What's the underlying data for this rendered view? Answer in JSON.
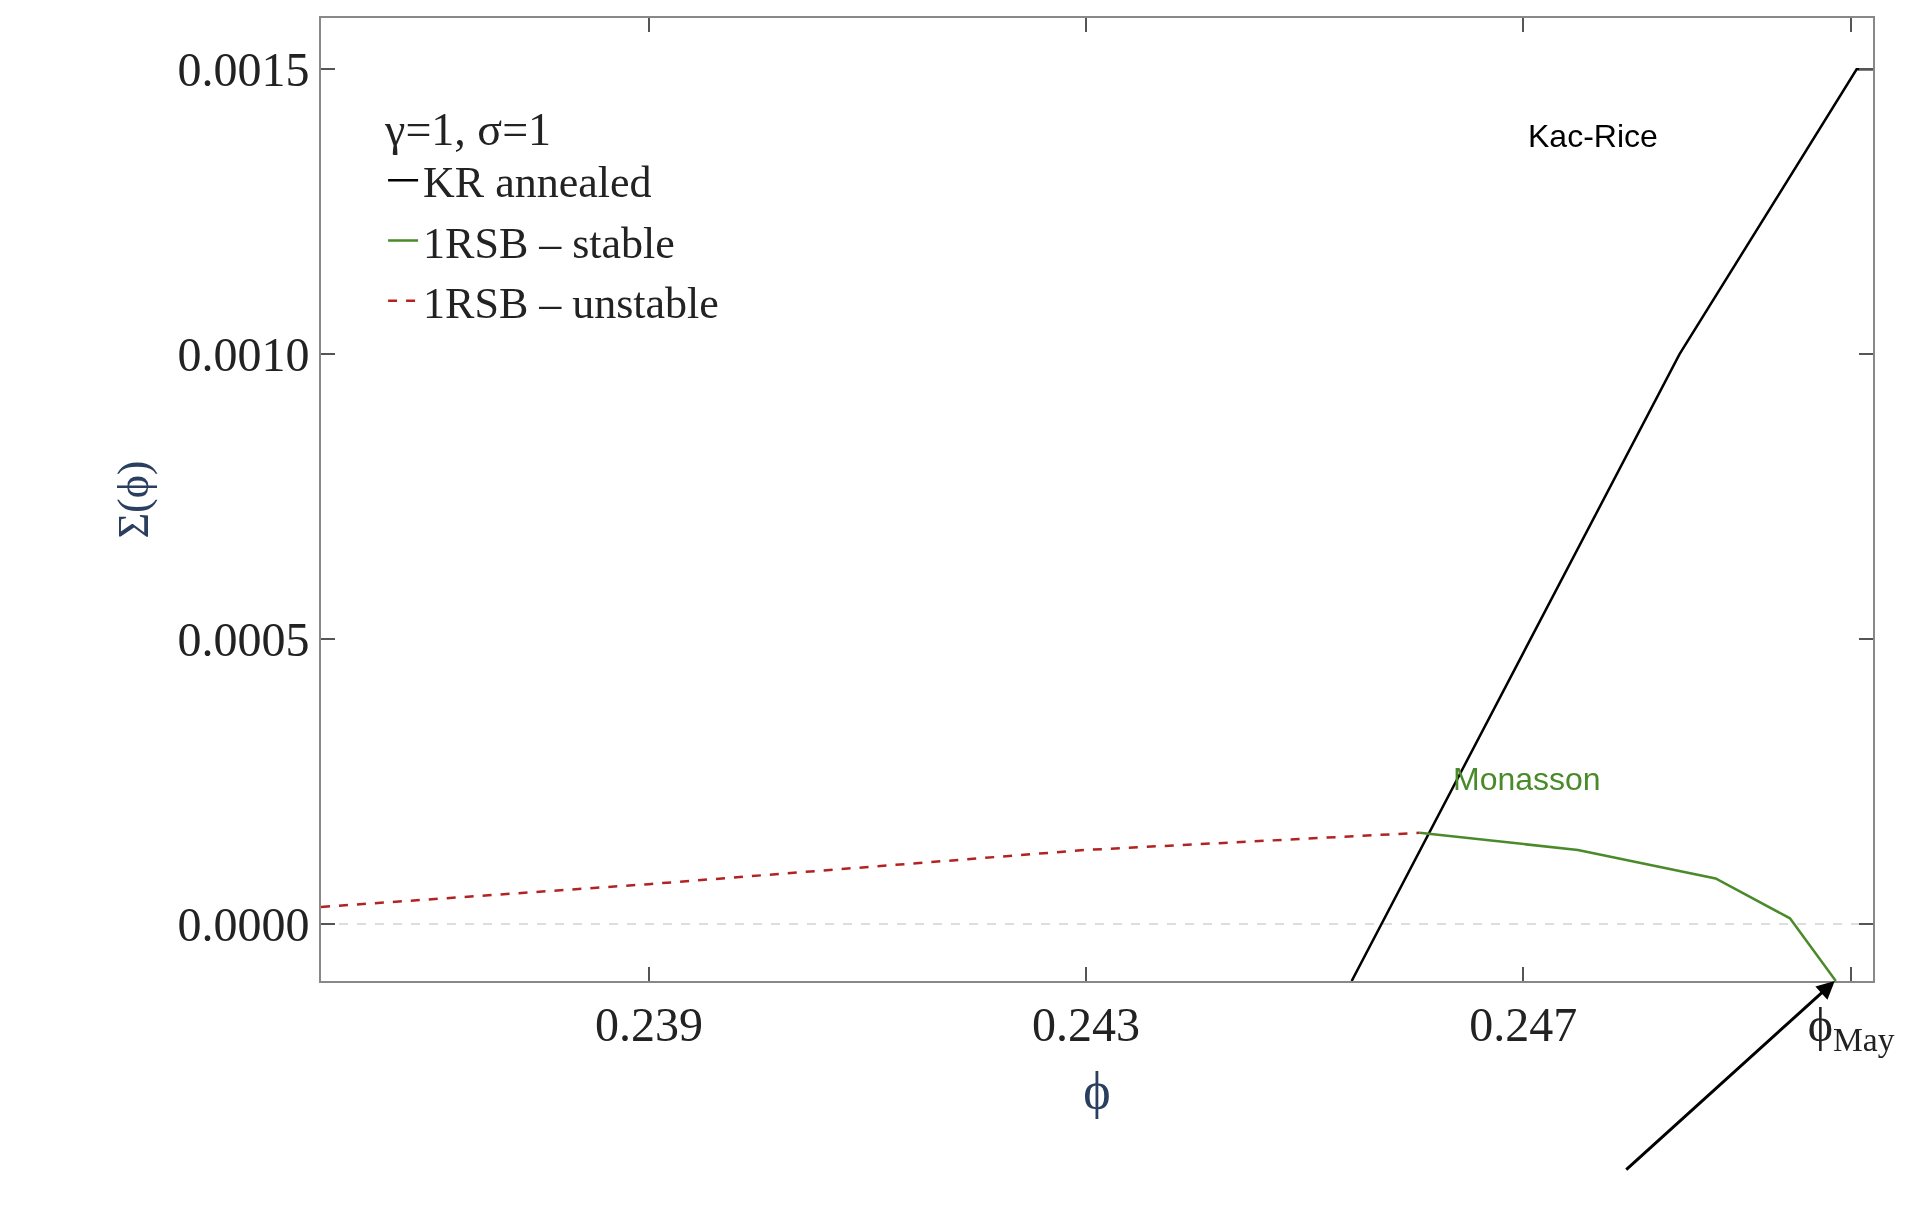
{
  "chart_data": {
    "type": "line",
    "xlabel": "ϕ",
    "ylabel": "Σ(ϕ)",
    "legend_title": "γ=1, σ=1",
    "xlim": [
      0.236,
      0.2502
    ],
    "ylim": [
      -0.0001,
      0.00159
    ],
    "xticks": [
      0.239,
      0.243,
      0.247,
      {
        "value": 0.25,
        "label": "ϕ$_{May}$"
      }
    ],
    "yticks": [
      {
        "value": 0,
        "label": "0.0000"
      },
      {
        "value": 0.0005,
        "label": "0.0005"
      },
      {
        "value": 0.001,
        "label": "0.0010"
      },
      {
        "value": 0.0015,
        "label": "0.0015"
      }
    ],
    "grid": false,
    "legend": "top left",
    "series": [
      {
        "name": "KR annealed",
        "color": "#000000",
        "line_style": "solid",
        "x": [
          0.24543,
          0.24843,
          0.25005,
          0.2502
        ],
        "values": [
          -0.0001,
          0.001,
          0.0015,
          0.0015
        ]
      },
      {
        "name": "1RSB – stable",
        "color": "#4a8a2a",
        "line_style": "solid",
        "x": [
          0.24605,
          0.2475,
          0.24876,
          0.24944,
          0.24986
        ],
        "values": [
          0.00016,
          0.00013,
          8e-05,
          1e-05,
          -0.0001
        ]
      },
      {
        "name": "1RSB – unstable",
        "color": "#b22222",
        "line_style": "dashed",
        "x": [
          0.236,
          0.239,
          0.243,
          0.24605
        ],
        "values": [
          3e-05,
          7e-05,
          0.00013,
          0.00016
        ]
      }
    ],
    "ref_lines": [
      {
        "axis": "y",
        "value": 0,
        "color": "#dddddd",
        "line_style": "dashed"
      }
    ],
    "annotations": [
      "Kac-Rice",
      "Monasson"
    ]
  }
}
